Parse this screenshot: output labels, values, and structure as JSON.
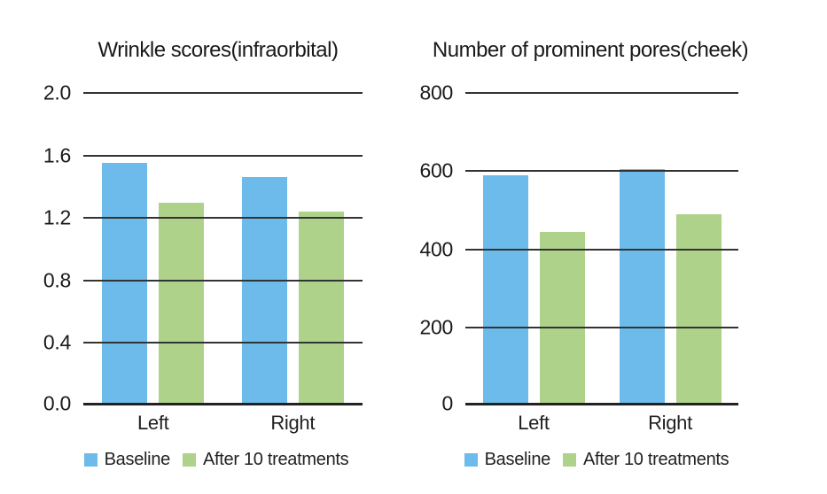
{
  "palette": {
    "baseline_blue": "#6DBBEA",
    "treatment_green": "#AFD28A",
    "grid_line": "#333333",
    "axis_line": "#222222",
    "text": "#1a1a1a",
    "background": "#ffffff"
  },
  "chart_data": [
    {
      "type": "bar",
      "title": "Wrinkle scores(infraorbital)",
      "categories": [
        "Left",
        "Right"
      ],
      "series": [
        {
          "name": "Baseline",
          "color": "#6DBBEA",
          "values": [
            1.55,
            1.46
          ]
        },
        {
          "name": "After 10 treatments",
          "color": "#AFD28A",
          "values": [
            1.3,
            1.24
          ]
        }
      ],
      "ylim": [
        0,
        2.0
      ],
      "yticks": [
        2.0,
        1.6,
        1.2,
        0.8,
        0.4,
        0.0
      ],
      "ytick_labels": [
        "2.0",
        "1.6",
        "1.2",
        "0.8",
        "0.4",
        "0.0"
      ],
      "xlabel": "",
      "ylabel": "",
      "grid": true,
      "legend_position": "bottom"
    },
    {
      "type": "bar",
      "title": "Number of prominent pores(cheek)",
      "categories": [
        "Left",
        "Right"
      ],
      "series": [
        {
          "name": "Baseline",
          "color": "#6DBBEA",
          "values": [
            590,
            605
          ]
        },
        {
          "name": "After 10 treatments",
          "color": "#AFD28A",
          "values": [
            445,
            490
          ]
        }
      ],
      "ylim": [
        0,
        800
      ],
      "yticks": [
        800,
        600,
        400,
        200,
        0
      ],
      "ytick_labels": [
        "800",
        "600",
        "400",
        "200",
        "0"
      ],
      "xlabel": "",
      "ylabel": "",
      "grid": true,
      "legend_position": "bottom"
    }
  ]
}
